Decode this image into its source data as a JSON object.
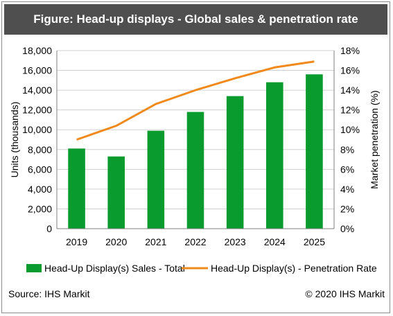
{
  "header": {
    "title": "Figure: Head-up displays - Global sales & penetration rate"
  },
  "footer": {
    "source": "Source: IHS Markit",
    "copyright": "© 2020 IHS Markit"
  },
  "colors": {
    "bar": "#0a9b2f",
    "line": "#f08a1c",
    "title_bg": "#4f4f4f"
  },
  "chart_data": {
    "type": "bar",
    "categories": [
      "2019",
      "2020",
      "2021",
      "2022",
      "2023",
      "2024",
      "2025"
    ],
    "series": [
      {
        "name": "Head-Up Display(s) Sales - Total",
        "type": "bar",
        "axis": "left",
        "values": [
          8100,
          7300,
          9900,
          11800,
          13400,
          14800,
          15600
        ]
      },
      {
        "name": "Head-Up Display(s) - Penetration Rate",
        "type": "line",
        "axis": "right",
        "values": [
          9.0,
          10.4,
          12.6,
          14.0,
          15.2,
          16.3,
          16.9
        ]
      }
    ],
    "ylabel": "Units (thousands)",
    "y2label": "Market penetration (%)",
    "ylim": [
      0,
      18000
    ],
    "y2lim": [
      0,
      18
    ],
    "yticks": [
      "0",
      "2,000",
      "4,000",
      "6,000",
      "8,000",
      "10,000",
      "12,000",
      "14,000",
      "16,000",
      "18,000"
    ],
    "y2ticks": [
      "0%",
      "2%",
      "4%",
      "6%",
      "8%",
      "10%",
      "12%",
      "14%",
      "16%",
      "18%"
    ],
    "grid": true,
    "legend_position": "bottom"
  }
}
